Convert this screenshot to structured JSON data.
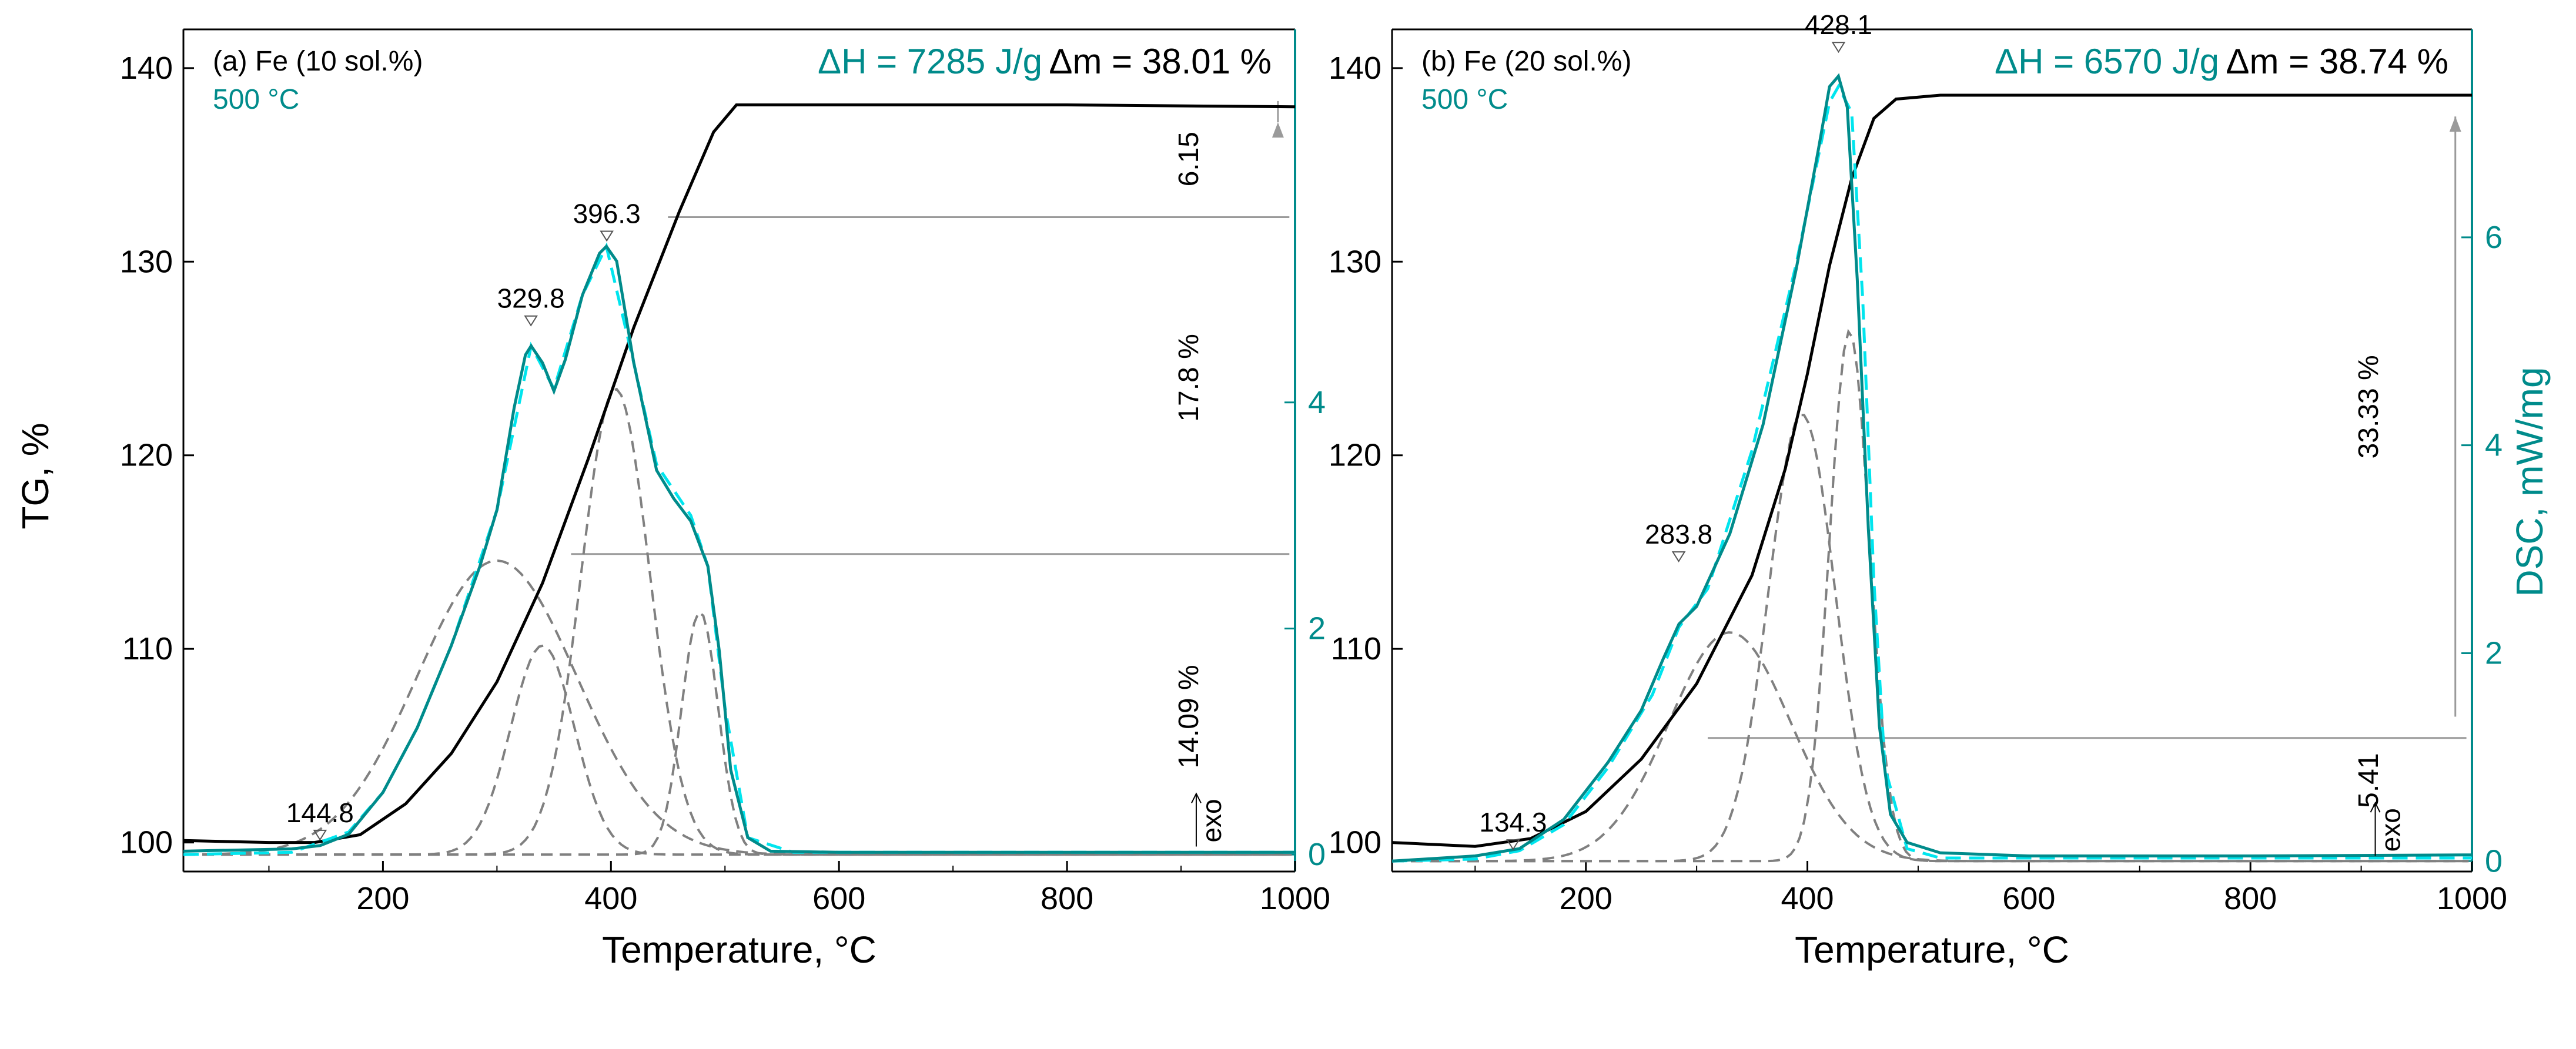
{
  "colors": {
    "tg": "#000000",
    "dsc": "#008B8B",
    "fit": "#00E5EE",
    "peak": "#808080",
    "hline": "#9a9a9a"
  },
  "shared": {
    "tg_axis_label": "TG, %",
    "dsc_axis_label": "DSC, mW/mg",
    "x_axis_label": "Temperature, °C",
    "exo_label": "exo"
  },
  "chart_data": [
    {
      "type": "line",
      "panel_label": "(a) Fe (10 sol.%)",
      "temp_label": "500 °C",
      "dH_label": "ΔH = 7285 J/g",
      "dm_label": "Δm = 38.01 %",
      "xlabel": "Temperature, °C",
      "ylabel": "TG, %",
      "xlim": [
        25,
        1000
      ],
      "ylim_tg": [
        98.5,
        142
      ],
      "ylim_dsc": [
        -0.15,
        7.3
      ],
      "x_ticks": [
        200,
        400,
        600,
        800,
        1000
      ],
      "tg_ticks": [
        100,
        110,
        120,
        130,
        140
      ],
      "dsc_ticks": [
        0,
        2,
        4
      ],
      "peak_labels": [
        {
          "text": "144.8",
          "x": 144.8,
          "y": 0.1
        },
        {
          "text": "329.8",
          "x": 329.8,
          "y": 4.65
        },
        {
          "text": "396.3",
          "x": 396.3,
          "y": 5.4
        }
      ],
      "step_labels": [
        {
          "text": "6.15",
          "tg": 135.3
        },
        {
          "text": "17.8 %",
          "tg": 124.0
        },
        {
          "text": "14.09 %",
          "tg": 106.5
        }
      ],
      "hlines_tg": [
        132.3,
        114.9
      ],
      "hline_start_x": [
        450,
        365
      ],
      "arrow_tg": [
        138.3,
        137.2
      ],
      "tg_series": [
        [
          25,
          100.1
        ],
        [
          100,
          100
        ],
        [
          140,
          100
        ],
        [
          180,
          100.4
        ],
        [
          220,
          102
        ],
        [
          260,
          104.6
        ],
        [
          300,
          108.3
        ],
        [
          340,
          113.4
        ],
        [
          380,
          119.8
        ],
        [
          420,
          126.6
        ],
        [
          460,
          132.6
        ],
        [
          490,
          136.7
        ],
        [
          510,
          138.1
        ],
        [
          600,
          138.1
        ],
        [
          800,
          138.1
        ],
        [
          1000,
          138.0
        ]
      ],
      "dsc_series": [
        [
          25,
          0.03
        ],
        [
          120,
          0.05
        ],
        [
          145,
          0.08
        ],
        [
          170,
          0.18
        ],
        [
          200,
          0.55
        ],
        [
          230,
          1.12
        ],
        [
          260,
          1.85
        ],
        [
          285,
          2.55
        ],
        [
          300,
          3.05
        ],
        [
          315,
          3.95
        ],
        [
          325,
          4.42
        ],
        [
          330,
          4.5
        ],
        [
          340,
          4.35
        ],
        [
          350,
          4.1
        ],
        [
          360,
          4.38
        ],
        [
          375,
          4.95
        ],
        [
          390,
          5.32
        ],
        [
          396,
          5.38
        ],
        [
          405,
          5.25
        ],
        [
          420,
          4.35
        ],
        [
          440,
          3.4
        ],
        [
          455,
          3.15
        ],
        [
          470,
          2.95
        ],
        [
          485,
          2.55
        ],
        [
          495,
          1.8
        ],
        [
          505,
          0.75
        ],
        [
          520,
          0.15
        ],
        [
          540,
          0.03
        ],
        [
          600,
          0.02
        ],
        [
          700,
          0.02
        ],
        [
          800,
          0.02
        ],
        [
          900,
          0.02
        ],
        [
          1000,
          0.02
        ]
      ],
      "fit_series": [
        [
          25,
          0.0
        ],
        [
          120,
          0.02
        ],
        [
          170,
          0.2
        ],
        [
          200,
          0.55
        ],
        [
          230,
          1.12
        ],
        [
          260,
          1.85
        ],
        [
          300,
          3.05
        ],
        [
          330,
          4.5
        ],
        [
          350,
          4.12
        ],
        [
          375,
          4.95
        ],
        [
          396,
          5.38
        ],
        [
          420,
          4.35
        ],
        [
          440,
          3.45
        ],
        [
          470,
          3.0
        ],
        [
          485,
          2.55
        ],
        [
          500,
          1.3
        ],
        [
          520,
          0.15
        ],
        [
          560,
          0.02
        ],
        [
          1000,
          0.02
        ]
      ],
      "fit_peaks": [
        {
          "center": 300,
          "height": 2.6,
          "width": 70
        },
        {
          "center": 340,
          "height": 1.85,
          "width": 28
        },
        {
          "center": 404,
          "height": 4.12,
          "width": 30
        },
        {
          "center": 478,
          "height": 2.15,
          "width": 16
        }
      ]
    },
    {
      "type": "line",
      "panel_label": "(b) Fe (20 sol.%)",
      "temp_label": "500 °C",
      "dH_label": "ΔH = 6570 J/g",
      "dm_label": "Δm = 38.74 %",
      "xlabel": "Temperature, °C",
      "ylabel": "DSC, mW/mg",
      "xlim": [
        25,
        1000
      ],
      "ylim_tg": [
        98.5,
        142
      ],
      "ylim_dsc": [
        -0.1,
        8.0
      ],
      "x_ticks": [
        200,
        400,
        600,
        800,
        1000
      ],
      "tg_ticks": [
        100,
        110,
        120,
        130,
        140
      ],
      "dsc_ticks": [
        0,
        2,
        4,
        6
      ],
      "peak_labels": [
        {
          "text": "134.3",
          "x": 134.3,
          "y": 0.08
        },
        {
          "text": "283.8",
          "x": 283.8,
          "y": 2.85
        },
        {
          "text": "428.1",
          "x": 428.1,
          "y": 7.75
        }
      ],
      "step_labels": [
        {
          "text": "33.33 %",
          "tg": 122.5
        },
        {
          "text": "5.41",
          "tg": 103.2
        }
      ],
      "hlines_tg": [
        105.4
      ],
      "hline_start_x": [
        310
      ],
      "arrow_tg": [
        106.5,
        137.5
      ],
      "tg_series": [
        [
          25,
          100
        ],
        [
          100,
          99.8
        ],
        [
          150,
          100.2
        ],
        [
          200,
          101.6
        ],
        [
          250,
          104.3
        ],
        [
          300,
          108.2
        ],
        [
          350,
          113.8
        ],
        [
          380,
          119.3
        ],
        [
          400,
          124.2
        ],
        [
          420,
          129.8
        ],
        [
          440,
          134.3
        ],
        [
          460,
          137.4
        ],
        [
          480,
          138.4
        ],
        [
          520,
          138.6
        ],
        [
          600,
          138.6
        ],
        [
          800,
          138.6
        ],
        [
          1000,
          138.6
        ]
      ],
      "dsc_series": [
        [
          25,
          0.0
        ],
        [
          100,
          0.05
        ],
        [
          140,
          0.12
        ],
        [
          180,
          0.4
        ],
        [
          220,
          0.95
        ],
        [
          250,
          1.45
        ],
        [
          270,
          1.95
        ],
        [
          284,
          2.28
        ],
        [
          300,
          2.45
        ],
        [
          330,
          3.15
        ],
        [
          360,
          4.2
        ],
        [
          390,
          5.7
        ],
        [
          410,
          6.85
        ],
        [
          420,
          7.45
        ],
        [
          428,
          7.55
        ],
        [
          436,
          7.25
        ],
        [
          445,
          5.6
        ],
        [
          455,
          3.2
        ],
        [
          465,
          1.3
        ],
        [
          475,
          0.45
        ],
        [
          490,
          0.18
        ],
        [
          520,
          0.08
        ],
        [
          600,
          0.05
        ],
        [
          800,
          0.05
        ],
        [
          1000,
          0.06
        ]
      ],
      "fit_series": [
        [
          25,
          0.0
        ],
        [
          100,
          0.02
        ],
        [
          140,
          0.1
        ],
        [
          180,
          0.35
        ],
        [
          220,
          0.9
        ],
        [
          260,
          1.6
        ],
        [
          284,
          2.25
        ],
        [
          310,
          2.62
        ],
        [
          350,
          3.95
        ],
        [
          390,
          5.75
        ],
        [
          420,
          7.3
        ],
        [
          428,
          7.45
        ],
        [
          440,
          7.2
        ],
        [
          450,
          5.4
        ],
        [
          460,
          2.7
        ],
        [
          470,
          0.9
        ],
        [
          490,
          0.12
        ],
        [
          520,
          0.03
        ],
        [
          1000,
          0.03
        ]
      ],
      "fit_peaks": [
        {
          "center": 330,
          "height": 2.2,
          "width": 55
        },
        {
          "center": 395,
          "height": 4.3,
          "width": 30
        },
        {
          "center": 438,
          "height": 5.1,
          "width": 18
        }
      ]
    }
  ]
}
